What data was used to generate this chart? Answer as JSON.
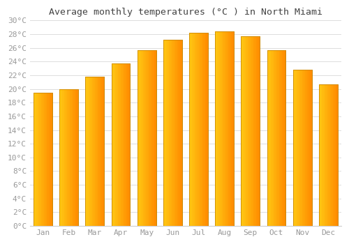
{
  "title": "Average monthly temperatures (°C ) in North Miami",
  "months": [
    "Jan",
    "Feb",
    "Mar",
    "Apr",
    "May",
    "Jun",
    "Jul",
    "Aug",
    "Sep",
    "Oct",
    "Nov",
    "Dec"
  ],
  "values": [
    19.5,
    20.0,
    21.8,
    23.7,
    25.7,
    27.2,
    28.2,
    28.4,
    27.7,
    25.7,
    22.8,
    20.7
  ],
  "bar_color_left": "#FFD84D",
  "bar_color_right": "#FFA500",
  "bar_edge_color": "#CC8800",
  "ylim": [
    0,
    30
  ],
  "ytick_step": 2,
  "background_color": "#FFFFFF",
  "plot_bg_color": "#FFFFFF",
  "grid_color": "#DDDDDD",
  "title_fontsize": 9.5,
  "tick_fontsize": 8,
  "tick_font_color": "#999999",
  "title_color": "#444444"
}
